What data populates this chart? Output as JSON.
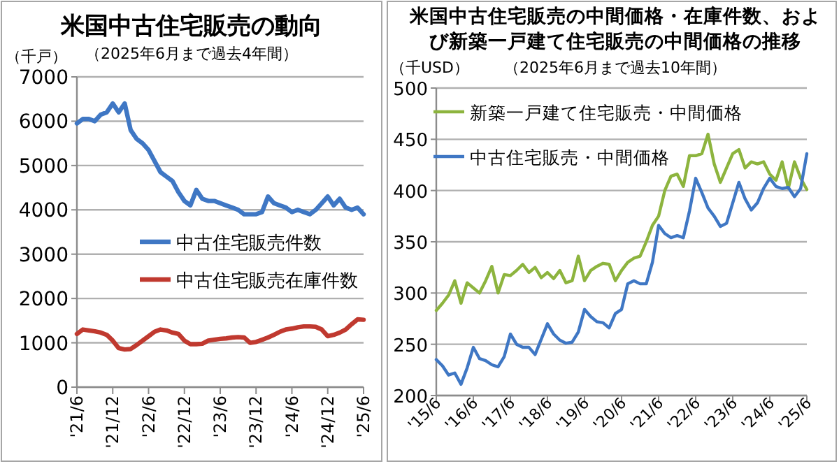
{
  "chart_data": [
    {
      "type": "line",
      "title": "米国中古住宅販売の動向",
      "subtitle": "（2025年6月まで過去4年間）",
      "ylabel": "（千戸）",
      "categories": [
        "'21/6",
        null,
        null,
        null,
        null,
        null,
        "'21/12",
        null,
        null,
        null,
        null,
        null,
        "'22/6",
        null,
        null,
        null,
        null,
        null,
        "'22/12",
        null,
        null,
        null,
        null,
        null,
        "'23/6",
        null,
        null,
        null,
        null,
        null,
        "'23/12",
        null,
        null,
        null,
        null,
        null,
        "'24/6",
        null,
        null,
        null,
        null,
        null,
        "'24/12",
        null,
        null,
        null,
        null,
        null,
        "'25/6"
      ],
      "series": [
        {
          "name": "中古住宅販売件数",
          "color": "#3f77c4",
          "values": [
            5950,
            6050,
            6050,
            6000,
            6150,
            6200,
            6400,
            6200,
            6400,
            5800,
            5600,
            5500,
            5350,
            5100,
            4850,
            4750,
            4650,
            4400,
            4200,
            4100,
            4450,
            4250,
            4200,
            4200,
            4150,
            4100,
            4050,
            4000,
            3900,
            3900,
            3900,
            3950,
            4300,
            4150,
            4100,
            4050,
            3950,
            4000,
            3950,
            3900,
            4000,
            4150,
            4300,
            4100,
            4250,
            4050,
            4000,
            4050,
            3900
          ]
        },
        {
          "name": "中古住宅販売在庫件数",
          "color": "#c0392f",
          "values": [
            1200,
            1300,
            1280,
            1260,
            1230,
            1180,
            1050,
            880,
            850,
            860,
            950,
            1050,
            1150,
            1250,
            1300,
            1280,
            1230,
            1200,
            1050,
            970,
            970,
            980,
            1050,
            1070,
            1090,
            1100,
            1120,
            1130,
            1120,
            1000,
            1020,
            1070,
            1120,
            1180,
            1250,
            1300,
            1320,
            1350,
            1370,
            1370,
            1360,
            1300,
            1150,
            1180,
            1230,
            1300,
            1420,
            1530,
            1520
          ]
        }
      ],
      "ylim": [
        0,
        7000
      ],
      "yticks": [
        0,
        1000,
        2000,
        3000,
        4000,
        5000,
        6000,
        7000
      ],
      "grid": "y",
      "legend": "center"
    },
    {
      "type": "line",
      "title": "米国中古住宅販売の中間価格・在庫件数、および新築一戸建て住宅販売の中間価格の推移",
      "subtitle": "（2025年6月まで過去10年間）",
      "ylabel": "（千USD）",
      "categories": [
        "'15/6",
        null,
        null,
        null,
        null,
        null,
        "'16/6",
        null,
        null,
        null,
        null,
        null,
        "'17/6",
        null,
        null,
        null,
        null,
        null,
        "'18/6",
        null,
        null,
        null,
        null,
        null,
        "'19/6",
        null,
        null,
        null,
        null,
        null,
        "'20/6",
        null,
        null,
        null,
        null,
        null,
        "'21/6",
        null,
        null,
        null,
        null,
        null,
        "'22/6",
        null,
        null,
        null,
        null,
        null,
        "'23/6",
        null,
        null,
        null,
        null,
        null,
        "'24/6",
        null,
        null,
        null,
        null,
        null,
        "'25/6"
      ],
      "series": [
        {
          "name": "新築一戸建て住宅販売・中間価格",
          "color": "#8db43e",
          "values": [
            283,
            290,
            298,
            312,
            290,
            310,
            305,
            300,
            312,
            326,
            300,
            318,
            317,
            322,
            328,
            320,
            325,
            315,
            320,
            314,
            322,
            310,
            312,
            336,
            312,
            322,
            326,
            329,
            328,
            312,
            322,
            330,
            334,
            336,
            350,
            366,
            375,
            400,
            414,
            416,
            404,
            434,
            434,
            436,
            455,
            426,
            408,
            422,
            436,
            440,
            422,
            428,
            426,
            428,
            416,
            410,
            428,
            402,
            428,
            412,
            401
          ]
        },
        {
          "name": "中古住宅販売・中間価格",
          "color": "#3f77c4",
          "values": [
            235,
            229,
            220,
            222,
            211,
            227,
            247,
            236,
            234,
            230,
            228,
            238,
            260,
            250,
            247,
            247,
            240,
            255,
            270,
            260,
            254,
            251,
            252,
            262,
            284,
            277,
            272,
            271,
            266,
            280,
            284,
            309,
            312,
            309,
            309,
            330,
            366,
            358,
            354,
            356,
            354,
            380,
            412,
            398,
            383,
            375,
            365,
            368,
            388,
            408,
            392,
            381,
            388,
            402,
            412,
            404,
            402,
            403,
            394,
            402,
            436
          ]
        }
      ],
      "ylim": [
        200,
        500
      ],
      "yticks": [
        200,
        250,
        300,
        350,
        400,
        450,
        500
      ],
      "grid": "y",
      "legend": "top left"
    }
  ]
}
